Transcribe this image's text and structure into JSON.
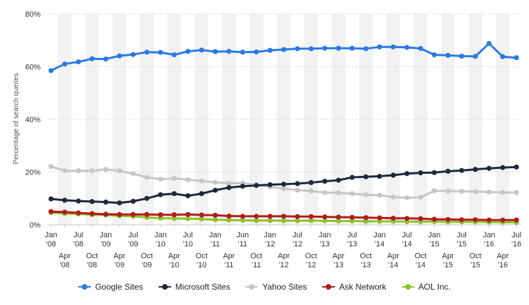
{
  "chart_data": {
    "type": "line",
    "ylabel": "Percentage of search queries",
    "ylim": [
      0,
      80
    ],
    "yticks": [
      "0%",
      "20%",
      "40%",
      "60%",
      "80%"
    ],
    "ytick_values": [
      0,
      20,
      40,
      60,
      80
    ],
    "grid": true,
    "legend_position": "bottom",
    "xtick_labels": [
      {
        "m": "Jan",
        "y": "'08"
      },
      {
        "m": "Apr",
        "y": "'08"
      },
      {
        "m": "Jul",
        "y": "'08"
      },
      {
        "m": "Oct",
        "y": "'08"
      },
      {
        "m": "Jan",
        "y": "'09"
      },
      {
        "m": "Apr",
        "y": "'09"
      },
      {
        "m": "Jul",
        "y": "'09"
      },
      {
        "m": "Oct",
        "y": "'09"
      },
      {
        "m": "Jan",
        "y": "'10"
      },
      {
        "m": "Apr",
        "y": "'10"
      },
      {
        "m": "Jul",
        "y": "'10"
      },
      {
        "m": "Oct",
        "y": "'10"
      },
      {
        "m": "Jan",
        "y": "'11"
      },
      {
        "m": "Apr",
        "y": "'11"
      },
      {
        "m": "Jun",
        "y": "'11"
      },
      {
        "m": "Oct",
        "y": "'11"
      },
      {
        "m": "Jan",
        "y": "'12"
      },
      {
        "m": "Apr",
        "y": "'12"
      },
      {
        "m": "Jul",
        "y": "'12"
      },
      {
        "m": "Oct",
        "y": "'12"
      },
      {
        "m": "Jan",
        "y": "'13"
      },
      {
        "m": "Apr",
        "y": "'13"
      },
      {
        "m": "Jul",
        "y": "'13"
      },
      {
        "m": "Oct",
        "y": "'13"
      },
      {
        "m": "Jan",
        "y": "'14"
      },
      {
        "m": "Apr",
        "y": "'14"
      },
      {
        "m": "Jul",
        "y": "'14"
      },
      {
        "m": "Oct",
        "y": "'14"
      },
      {
        "m": "Jan",
        "y": "'15"
      },
      {
        "m": "Apr",
        "y": "'15"
      },
      {
        "m": "Jul",
        "y": "'15"
      },
      {
        "m": "Oct",
        "y": "'15"
      },
      {
        "m": "Jan",
        "y": "'16"
      },
      {
        "m": "Apr",
        "y": "'16"
      },
      {
        "m": "Jul",
        "y": "'16"
      }
    ],
    "series": [
      {
        "name": "Google Sites",
        "color": "#2a7ae2",
        "values": [
          58.5,
          61.0,
          61.8,
          63.0,
          62.9,
          64.1,
          64.6,
          65.5,
          65.4,
          64.5,
          65.8,
          66.3,
          65.7,
          65.8,
          65.5,
          65.6,
          66.2,
          66.5,
          66.8,
          66.8,
          67.0,
          67.0,
          67.0,
          66.8,
          67.5,
          67.5,
          67.3,
          66.9,
          64.5,
          64.3,
          64.0,
          63.9,
          68.8,
          63.8,
          63.4
        ]
      },
      {
        "name": "Microsoft Sites",
        "color": "#1b2b3d",
        "values": [
          9.8,
          9.3,
          9.0,
          8.8,
          8.6,
          8.3,
          8.9,
          10.0,
          11.4,
          11.8,
          11.0,
          11.8,
          13.1,
          14.1,
          14.6,
          14.9,
          15.2,
          15.4,
          15.6,
          16.0,
          16.5,
          16.9,
          18.0,
          18.2,
          18.4,
          18.8,
          19.4,
          19.7,
          19.8,
          20.3,
          20.6,
          21.0,
          21.4,
          21.7,
          21.9
        ]
      },
      {
        "name": "Yahoo Sites",
        "color": "#c6c6c6",
        "values": [
          22.1,
          20.5,
          20.5,
          20.5,
          21.0,
          20.5,
          19.4,
          18.0,
          17.3,
          17.6,
          17.1,
          16.6,
          16.1,
          15.7,
          15.8,
          15.2,
          14.4,
          13.7,
          13.1,
          12.8,
          12.2,
          12.1,
          11.8,
          11.4,
          11.2,
          10.5,
          10.2,
          10.4,
          12.9,
          12.8,
          12.7,
          12.6,
          12.4,
          12.3,
          12.2
        ]
      },
      {
        "name": "Ask Network",
        "color": "#b01c1c",
        "values": [
          5.0,
          4.8,
          4.5,
          4.2,
          4.0,
          3.9,
          3.9,
          3.9,
          3.8,
          3.8,
          3.9,
          3.7,
          3.6,
          3.3,
          3.2,
          3.2,
          3.2,
          3.2,
          3.1,
          3.1,
          3.0,
          2.9,
          2.8,
          2.7,
          2.6,
          2.5,
          2.4,
          2.3,
          2.1,
          2.0,
          1.9,
          1.9,
          1.8,
          1.8,
          1.8
        ]
      },
      {
        "name": "AOL Inc.",
        "color": "#8cc228",
        "values": [
          4.6,
          4.3,
          4.1,
          3.8,
          3.7,
          3.4,
          3.2,
          2.8,
          2.5,
          2.4,
          2.3,
          2.2,
          1.9,
          1.8,
          1.7,
          1.6,
          1.6,
          1.5,
          1.5,
          1.6,
          1.5,
          1.4,
          1.4,
          1.3,
          1.3,
          1.3,
          1.2,
          1.2,
          1.2,
          1.1,
          1.1,
          1.1,
          1.0,
          1.0,
          0.9
        ]
      }
    ]
  }
}
